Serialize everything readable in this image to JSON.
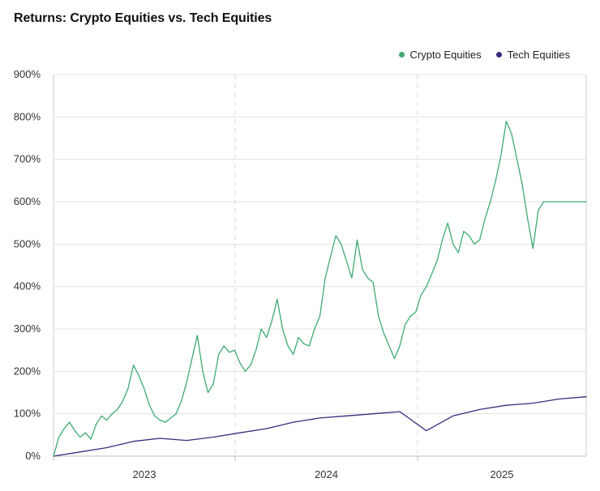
{
  "chart_data": {
    "type": "line",
    "title": "Returns: Crypto Equities vs. Tech Equities",
    "xlabel": "",
    "ylabel": "",
    "y_ticks": [
      "0%",
      "100%",
      "200%",
      "300%",
      "400%",
      "500%",
      "600%",
      "700%",
      "800%",
      "900%"
    ],
    "ylim": [
      0,
      900
    ],
    "x_ticks": [
      "2023",
      "2024",
      "2025"
    ],
    "xlim": [
      0,
      1
    ],
    "legend_position": "top-right",
    "series": [
      {
        "name": "Crypto Equities",
        "color": "#3daa72",
        "x": [
          0.0,
          0.01,
          0.02,
          0.03,
          0.04,
          0.05,
          0.06,
          0.07,
          0.08,
          0.09,
          0.1,
          0.11,
          0.12,
          0.13,
          0.14,
          0.15,
          0.16,
          0.17,
          0.18,
          0.19,
          0.2,
          0.21,
          0.22,
          0.23,
          0.24,
          0.25,
          0.26,
          0.27,
          0.28,
          0.29,
          0.3,
          0.31,
          0.32,
          0.33,
          0.34,
          0.35,
          0.36,
          0.37,
          0.38,
          0.39,
          0.4,
          0.41,
          0.42,
          0.43,
          0.44,
          0.45,
          0.46,
          0.47,
          0.48,
          0.49,
          0.5,
          0.51,
          0.52,
          0.53,
          0.54,
          0.55,
          0.56,
          0.57,
          0.58,
          0.59,
          0.6,
          0.61,
          0.62,
          0.63,
          0.64,
          0.65,
          0.66,
          0.67,
          0.68,
          0.69,
          0.7,
          0.71,
          0.72,
          0.73,
          0.74,
          0.75,
          0.76,
          0.77,
          0.78,
          0.79,
          0.8,
          0.81,
          0.82,
          0.83,
          0.84,
          0.85,
          0.86,
          0.87,
          0.88,
          0.89,
          0.9,
          0.91,
          0.92,
          0.93,
          0.94,
          0.95,
          0.96,
          0.97,
          0.98,
          0.99,
          1.0
        ],
        "values": [
          0,
          45,
          65,
          80,
          60,
          45,
          55,
          40,
          75,
          95,
          85,
          100,
          110,
          130,
          160,
          215,
          190,
          160,
          120,
          95,
          85,
          80,
          90,
          100,
          130,
          175,
          230,
          285,
          200,
          150,
          170,
          240,
          260,
          245,
          250,
          220,
          200,
          215,
          250,
          300,
          280,
          320,
          370,
          300,
          260,
          240,
          280,
          265,
          260,
          300,
          330,
          420,
          470,
          520,
          500,
          460,
          420,
          510,
          440,
          420,
          410,
          330,
          290,
          260,
          230,
          260,
          310,
          330,
          340,
          380,
          400,
          430,
          460,
          510,
          550,
          500,
          480,
          530,
          520,
          500,
          510,
          560,
          600,
          650,
          710,
          790,
          760,
          700,
          640,
          560,
          490,
          580,
          600,
          600,
          600,
          600,
          600,
          600,
          600,
          600,
          600
        ]
      },
      {
        "name": "Tech Equities",
        "color": "#3b2a7a",
        "x": [
          0.0,
          0.05,
          0.1,
          0.15,
          0.2,
          0.25,
          0.3,
          0.35,
          0.4,
          0.45,
          0.5,
          0.55,
          0.6,
          0.65,
          0.7,
          0.75,
          0.8,
          0.85,
          0.9,
          0.95,
          1.0
        ],
        "values": [
          0,
          10,
          20,
          35,
          42,
          37,
          45,
          55,
          65,
          80,
          90,
          95,
          100,
          105,
          60,
          95,
          110,
          120,
          125,
          135,
          140
        ]
      }
    ]
  }
}
